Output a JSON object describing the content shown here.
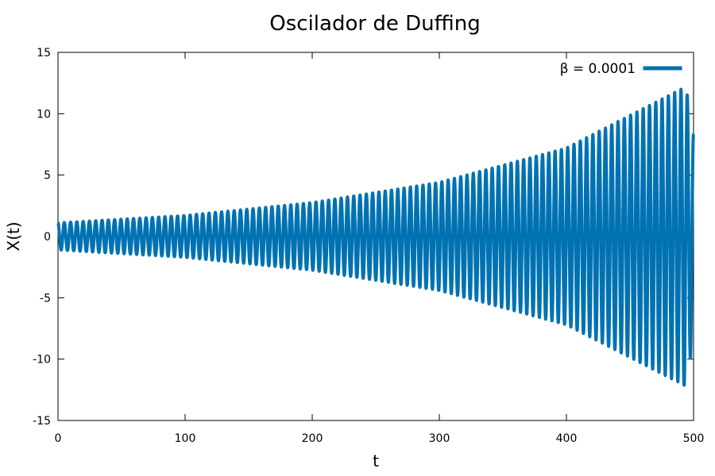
{
  "chart_data": {
    "type": "line",
    "title": "Oscilador de Duffing",
    "xlabel": "t",
    "ylabel": "X(t)",
    "xlim": [
      0,
      500
    ],
    "ylim": [
      -15,
      15
    ],
    "x_ticks": [
      0,
      100,
      200,
      300,
      400,
      500
    ],
    "y_ticks": [
      -15,
      -10,
      -5,
      0,
      5,
      10,
      15
    ],
    "grid": false,
    "legend_position": "top-right",
    "series": [
      {
        "name": "β = 0.0001",
        "color": "#0072b2",
        "oscillation_count": 101,
        "envelope": {
          "t": [
            0,
            100,
            200,
            300,
            400,
            494,
            500
          ],
          "amplitude": [
            1.1,
            1.7,
            2.75,
            4.4,
            7.2,
            12.2,
            8.3
          ]
        }
      }
    ]
  }
}
